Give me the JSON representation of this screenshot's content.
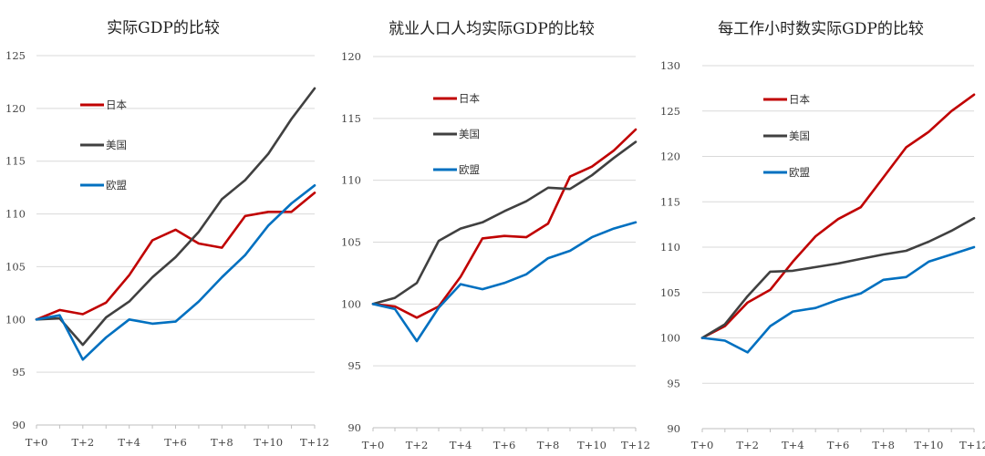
{
  "chart_data": [
    {
      "type": "line",
      "title": "实际GDP的比较",
      "x": [
        "T+0",
        "T+1",
        "T+2",
        "T+3",
        "T+4",
        "T+5",
        "T+6",
        "T+7",
        "T+8",
        "T+9",
        "T+10",
        "T+11",
        "T+12"
      ],
      "x_tick_labels": [
        "T+0",
        "T+2",
        "T+4",
        "T+6",
        "T+8",
        "T+10",
        "T+12"
      ],
      "ylim": [
        90,
        125
      ],
      "y_ticks": [
        90,
        95,
        100,
        105,
        110,
        115,
        120,
        125
      ],
      "legend_position": "upper-left",
      "series": [
        {
          "name": "日本",
          "color": "#C00000",
          "values": [
            100.0,
            100.9,
            100.5,
            101.6,
            104.2,
            107.5,
            108.5,
            107.2,
            106.8,
            109.8,
            110.2,
            110.2,
            112.0
          ]
        },
        {
          "name": "美国",
          "color": "#404040",
          "values": [
            100.0,
            100.1,
            97.6,
            100.2,
            101.7,
            104.0,
            105.9,
            108.3,
            111.4,
            113.2,
            115.7,
            119.0,
            121.9
          ]
        },
        {
          "name": "欧盟",
          "color": "#0070C0",
          "values": [
            100.0,
            100.4,
            96.2,
            98.3,
            100.0,
            99.6,
            99.8,
            101.7,
            104.0,
            106.1,
            108.9,
            111.0,
            112.7
          ]
        }
      ]
    },
    {
      "type": "line",
      "title": "就业人口人均实际GDP的比较",
      "x": [
        "T+0",
        "T+1",
        "T+2",
        "T+3",
        "T+4",
        "T+5",
        "T+6",
        "T+7",
        "T+8",
        "T+9",
        "T+10",
        "T+11",
        "T+12"
      ],
      "x_tick_labels": [
        "T+0",
        "T+2",
        "T+4",
        "T+6",
        "T+8",
        "T+10",
        "T+12"
      ],
      "ylim": [
        90,
        120
      ],
      "y_ticks": [
        90,
        95,
        100,
        105,
        110,
        115,
        120
      ],
      "legend_position": "upper-left",
      "series": [
        {
          "name": "日本",
          "color": "#C00000",
          "values": [
            100.0,
            99.8,
            98.9,
            99.8,
            102.2,
            105.3,
            105.5,
            105.4,
            106.5,
            110.3,
            111.1,
            112.4,
            114.1
          ]
        },
        {
          "name": "美国",
          "color": "#404040",
          "values": [
            100.0,
            100.5,
            101.7,
            105.1,
            106.1,
            106.6,
            107.5,
            108.3,
            109.4,
            109.3,
            110.4,
            111.8,
            113.1
          ]
        },
        {
          "name": "欧盟",
          "color": "#0070C0",
          "values": [
            100.0,
            99.6,
            97.0,
            99.7,
            101.6,
            101.2,
            101.7,
            102.4,
            103.7,
            104.3,
            105.4,
            106.1,
            106.6
          ]
        }
      ]
    },
    {
      "type": "line",
      "title": "每工作小时数实际GDP的比较",
      "x": [
        "T+0",
        "T+1",
        "T+2",
        "T+3",
        "T+4",
        "T+5",
        "T+6",
        "T+7",
        "T+8",
        "T+9",
        "T+10",
        "T+11",
        "T+12"
      ],
      "x_tick_labels": [
        "T+0",
        "T+2",
        "T+4",
        "T+6",
        "T+8",
        "T+10",
        "T+12"
      ],
      "ylim": [
        90,
        130
      ],
      "y_ticks": [
        90,
        95,
        100,
        105,
        110,
        115,
        120,
        125,
        130
      ],
      "legend_position": "upper-left",
      "series": [
        {
          "name": "日本",
          "color": "#C00000",
          "values": [
            100.0,
            101.3,
            103.9,
            105.3,
            108.4,
            111.2,
            113.1,
            114.4,
            117.7,
            121.0,
            122.7,
            125.0,
            126.8
          ]
        },
        {
          "name": "美国",
          "color": "#404040",
          "values": [
            100.0,
            101.5,
            104.6,
            107.3,
            107.4,
            107.8,
            108.2,
            108.7,
            109.2,
            109.6,
            110.6,
            111.8,
            113.2
          ]
        },
        {
          "name": "欧盟",
          "color": "#0070C0",
          "values": [
            100.0,
            99.7,
            98.4,
            101.3,
            102.9,
            103.3,
            104.2,
            104.9,
            106.4,
            106.7,
            108.4,
            109.2,
            110.0
          ]
        }
      ]
    }
  ]
}
